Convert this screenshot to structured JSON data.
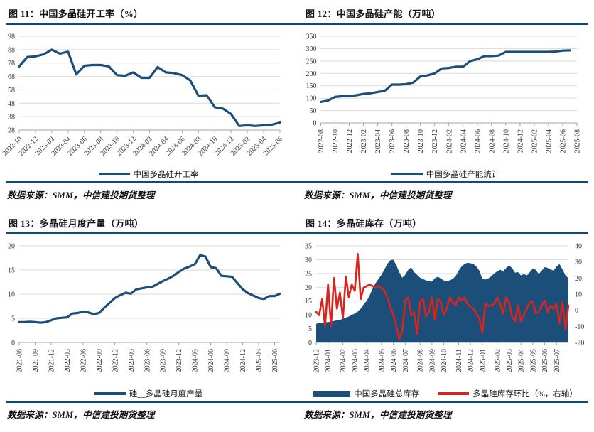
{
  "colors": {
    "navy": "#1B4E79",
    "red": "#D8241E",
    "rule": "#134A74",
    "grid": "#D9D9D9",
    "axis": "#A6A6A6",
    "tick_text": "#3D3D3D"
  },
  "chart_data": [
    {
      "type": "line",
      "title": "图 11：中国多晶硅开工率（%）",
      "source": "数据来源：SMM，中信建投期货整理",
      "ylim": [
        28,
        98
      ],
      "yticks": [
        28,
        38,
        48,
        58,
        68,
        78,
        88,
        98
      ],
      "x_start": "2022-10",
      "x_unit": "month",
      "x_domain": 32,
      "tick_rot": 45,
      "x_tick_labels": [
        "2022-10",
        "2022-12",
        "2023-02",
        "2023-04",
        "2023-06",
        "2023-08",
        "2023-10",
        "2023-12",
        "2024-02",
        "2024-04",
        "2024-06",
        "2024-08",
        "2024-10",
        "2024-12",
        "2025-02",
        "2025-04",
        "2025-06"
      ],
      "x_tick_idx": [
        0,
        2,
        4,
        6,
        8,
        10,
        12,
        14,
        16,
        18,
        20,
        22,
        24,
        26,
        28,
        30,
        32
      ],
      "legend": [
        {
          "label": "中国多晶硅开工率",
          "color": "#1B4E79",
          "shape": "line"
        }
      ],
      "series": [
        {
          "name": "中国多晶硅开工率",
          "axis": "left",
          "type": "line",
          "color": "#1B4E79",
          "values": [
            75.5,
            82.5,
            83,
            84.5,
            88,
            85,
            86.5,
            69.5,
            76,
            76.5,
            76.5,
            75.5,
            69,
            68.5,
            71,
            67,
            67,
            75,
            71,
            70.5,
            69,
            65,
            53.5,
            54,
            45,
            44,
            40,
            31,
            31.5,
            31,
            31.5,
            32,
            33.5
          ]
        }
      ]
    },
    {
      "type": "line",
      "title": "图 12：中国多晶硅产能（万吨）",
      "source": "数据来源：SMM，中信建投期货整理",
      "ylim": [
        0,
        350
      ],
      "yticks": [
        0,
        50,
        100,
        150,
        200,
        250,
        300,
        350
      ],
      "x_start": "2022-08",
      "x_unit": "month",
      "x_domain": 36,
      "tick_rot": 90,
      "x_tick_labels": [
        "2022-08",
        "2022-10",
        "2022-12",
        "2023-02",
        "2023-04",
        "2023-06",
        "2023-08",
        "2023-10",
        "2023-12",
        "2024-02",
        "2024-04",
        "2024-06",
        "2024-08",
        "2024-10",
        "2024-12",
        "2025-02",
        "2025-04",
        "2025-06",
        "2025-08"
      ],
      "x_tick_idx": [
        0,
        2,
        4,
        6,
        8,
        10,
        12,
        14,
        16,
        18,
        20,
        22,
        24,
        26,
        28,
        30,
        32,
        34,
        36
      ],
      "legend": [
        {
          "label": "中国多晶硅产能统计",
          "color": "#1B4E79",
          "shape": "line"
        }
      ],
      "series": [
        {
          "name": "中国多晶硅产能统计",
          "axis": "left",
          "type": "line",
          "color": "#1B4E79",
          "values": [
            85,
            90,
            105,
            108,
            108,
            112,
            117,
            120,
            125,
            130,
            155,
            155,
            157,
            163,
            188,
            192,
            200,
            220,
            222,
            227,
            227,
            250,
            257,
            270,
            270,
            272,
            287,
            287,
            287,
            287,
            287,
            287,
            287,
            288,
            292,
            293
          ]
        }
      ]
    },
    {
      "type": "line",
      "title": "图 13：多晶硅月度产量（万吨）",
      "source": "数据来源：SMM，中信建投期货整理",
      "ylim": [
        0,
        20
      ],
      "yticks": [
        0,
        5,
        10,
        15,
        20
      ],
      "x_start": "2021-06",
      "x_unit": "month",
      "x_domain": 49,
      "tick_rot": 90,
      "x_tick_labels": [
        "2021-06",
        "2021-09",
        "2021-12",
        "2022-03",
        "2022-06",
        "2022-09",
        "2022-12",
        "2023-03",
        "2023-06",
        "2023-09",
        "2023-12",
        "2024-03",
        "2024-06",
        "2024-09",
        "2024-12",
        "2025-03",
        "2025-06"
      ],
      "x_tick_idx": [
        0,
        3,
        6,
        9,
        12,
        15,
        18,
        21,
        24,
        27,
        30,
        33,
        36,
        39,
        42,
        45,
        48
      ],
      "legend": [
        {
          "label": "硅__多晶硅月度产量",
          "color": "#1B4E79",
          "shape": "line"
        }
      ],
      "series": [
        {
          "name": "硅__多晶硅月度产量",
          "axis": "left",
          "type": "line",
          "color": "#1B4E79",
          "values": [
            4.2,
            4.2,
            4.3,
            4.2,
            4.1,
            4.2,
            4.6,
            5.0,
            5.1,
            5.2,
            6.0,
            6.1,
            6.4,
            6.2,
            5.9,
            6.1,
            7.2,
            8.2,
            9.2,
            9.8,
            10.3,
            10.1,
            11.0,
            11.2,
            11.4,
            11.5,
            12.1,
            12.7,
            13.2,
            13.8,
            14.6,
            15.3,
            15.7,
            16.2,
            18.1,
            17.8,
            15.6,
            15.4,
            13.8,
            13.7,
            13.6,
            12.3,
            11.0,
            10.2,
            9.7,
            9.2,
            9.0,
            9.6,
            9.6,
            10.1
          ]
        }
      ]
    },
    {
      "type": "area+line",
      "title": "图 14：多晶硅库存（万吨）",
      "source": "数据来源：SMM，中信建投期货整理",
      "ylim": [
        0,
        35
      ],
      "yticks": [
        0,
        5,
        10,
        15,
        20,
        25,
        30,
        35
      ],
      "right_axis": {
        "ylim": [
          -20,
          40
        ],
        "yticks": [
          40,
          30,
          20,
          10,
          0,
          -10,
          -20
        ]
      },
      "x_start": "2023-12",
      "x_unit": "week",
      "x_domain": 85,
      "tick_rot": 90,
      "x_tick_labels": [
        "2023-12",
        "2024-01",
        "2024-02",
        "2024-03",
        "2024-04",
        "2024-05",
        "2024-06",
        "2024-07",
        "2024-08",
        "2024-09",
        "2024-10",
        "2024-11",
        "2024-12",
        "2025-01",
        "2025-02",
        "2025-03",
        "2025-04",
        "2025-05",
        "2025-06",
        "2025-07"
      ],
      "x_tick_idx": [
        0,
        4,
        9,
        13,
        17,
        22,
        26,
        30,
        35,
        39,
        43,
        48,
        52,
        56,
        61,
        65,
        69,
        73,
        77,
        81
      ],
      "legend": [
        {
          "label": "中国多晶硅总库存",
          "color": "#1B4E79",
          "shape": "box"
        },
        {
          "label": "多晶硅库存环比（%，右轴）",
          "color": "#D8241E",
          "shape": "line"
        }
      ],
      "series": [
        {
          "name": "中国多晶硅总库存",
          "axis": "left",
          "type": "area",
          "color": "#1B4E79",
          "values": [
            6.8,
            7.0,
            7.2,
            7.3,
            7.4,
            7.6,
            7.8,
            8.0,
            8.2,
            8.6,
            9.0,
            9.4,
            10.0,
            10.5,
            11.2,
            12.2,
            13.8,
            15.0,
            17.0,
            19.5,
            21.5,
            23.0,
            24.5,
            26.5,
            28.5,
            29.8,
            30.0,
            28.0,
            25.5,
            23.5,
            24.5,
            26.3,
            27.2,
            25.5,
            24.5,
            23.5,
            23.0,
            22.5,
            22.3,
            22.0,
            23.3,
            23.8,
            23.2,
            22.5,
            22.3,
            22.5,
            23.0,
            24.0,
            26.0,
            27.5,
            28.4,
            28.9,
            28.7,
            28.4,
            27.5,
            26.0,
            23.0,
            22.8,
            23.2,
            24.0,
            25.0,
            25.8,
            26.3,
            25.8,
            27.0,
            27.9,
            27.0,
            25.3,
            25.5,
            24.3,
            24.8,
            24.3,
            25.5,
            26.8,
            26.3,
            24.8,
            26.0,
            27.3,
            27.0,
            26.5,
            26.0,
            27.5,
            28.4,
            26.5,
            24.3,
            23.3
          ]
        },
        {
          "name": "多晶硅库存环比（%，右轴）",
          "axis": "right",
          "type": "line",
          "color": "#D8241E",
          "values": [
            -1,
            -3,
            7,
            -10,
            16,
            -10,
            20,
            1,
            11,
            -5,
            21,
            8,
            16,
            12,
            35,
            7,
            14,
            15,
            16,
            15,
            14,
            15,
            14,
            12,
            8,
            2,
            -3,
            -10,
            -18,
            -13,
            6,
            8,
            -3,
            -1,
            -15,
            5,
            7,
            -4,
            -1,
            8,
            -6,
            7,
            5,
            -3,
            1,
            8,
            5,
            3,
            8,
            6,
            8,
            4,
            2,
            1,
            -2,
            -5,
            -14,
            4,
            3,
            3,
            4,
            8,
            4,
            -2,
            8,
            5,
            -4,
            -7,
            3,
            -7,
            -3,
            1,
            5,
            5,
            -2,
            -1,
            3,
            6,
            -1,
            3,
            1,
            4,
            -8,
            5,
            -12,
            3
          ]
        }
      ]
    }
  ]
}
